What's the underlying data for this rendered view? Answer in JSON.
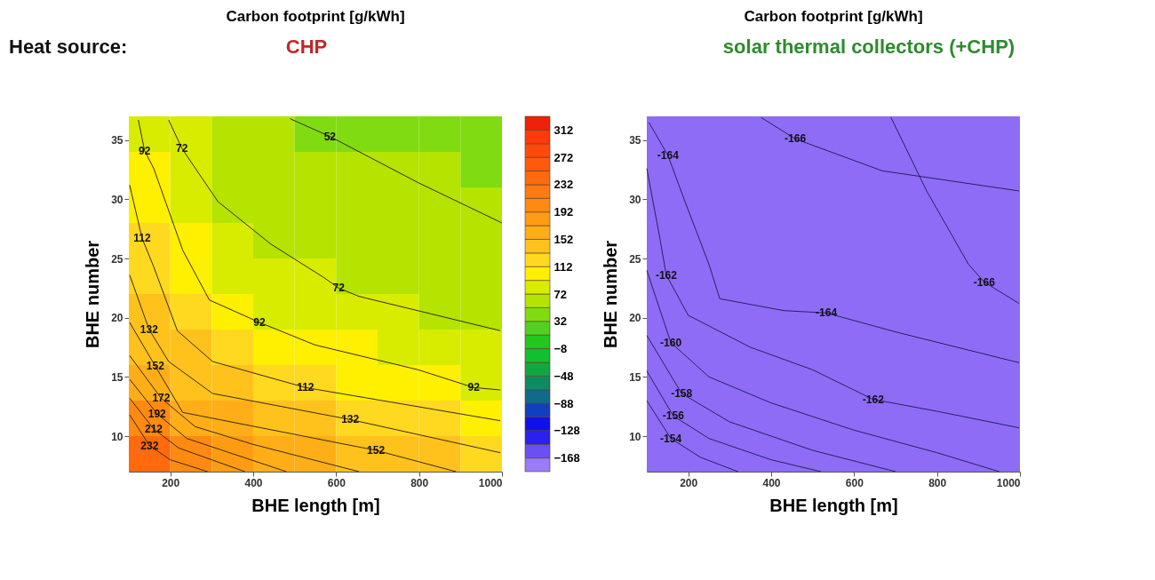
{
  "chart_data": [
    {
      "type": "heatmap",
      "title": "Carbon footprint [g/kWh]",
      "xlabel": "BHE length [m]",
      "ylabel": "BHE number",
      "x": [
        150,
        250,
        350,
        450,
        550,
        650,
        750,
        850,
        950
      ],
      "y": [
        35.5,
        32.5,
        29.5,
        26.5,
        23.5,
        20.5,
        17.5,
        14.5,
        11.5,
        8.5
      ],
      "cells": [
        [
          91,
          73,
          62,
          55,
          51,
          50,
          48,
          47,
          46
        ],
        [
          98,
          82,
          66,
          61,
          57,
          55,
          53,
          52,
          51
        ],
        [
          108,
          91,
          71,
          66,
          62,
          60,
          58,
          56,
          55
        ],
        [
          116,
          100,
          80,
          71,
          67,
          65,
          62,
          60,
          59
        ],
        [
          124,
          110,
          90,
          81,
          74,
          70,
          67,
          65,
          63
        ],
        [
          132,
          121,
          103,
          91,
          86,
          81,
          72,
          69,
          67
        ],
        [
          144,
          132,
          117,
          107,
          98,
          92,
          86,
          80,
          76
        ],
        [
          160,
          147,
          132,
          125,
          117,
          110,
          101,
          95,
          91
        ],
        [
          192,
          169,
          152,
          142,
          136,
          129,
          119,
          114,
          109
        ],
        [
          242,
          207,
          182,
          162,
          157,
          149,
          140,
          133,
          129
        ]
      ],
      "series": [
        {
          "type": "line",
          "color": "#3a2a10",
          "x": [
            489,
            585,
            798,
            1000
          ],
          "values": [
            36.8,
            35.3,
            31.4,
            28.0
          ]
        },
        {
          "type": "line",
          "color": "#3a2a10",
          "x": [
            196,
            228,
            251,
            315,
            443,
            570,
            606,
            655,
            996
          ],
          "values": [
            36.7,
            34.3,
            33.1,
            29.8,
            26.2,
            23.4,
            22.5,
            21.8,
            18.9
          ]
        },
        {
          "type": "line",
          "color": "#3a2a10",
          "x": [
            123,
            138,
            160,
            230,
            294,
            415,
            549,
            798,
            932,
            996
          ],
          "values": [
            36.7,
            34.1,
            32.6,
            25.7,
            21.5,
            19.6,
            17.7,
            15.6,
            14.1,
            13.9
          ]
        },
        {
          "type": "line",
          "color": "#3a2a10",
          "x": [
            102,
            132,
            160,
            217,
            302,
            526,
            728,
            996
          ],
          "values": [
            31.2,
            26.7,
            24.3,
            18.9,
            16.3,
            14.1,
            12.9,
            11.3
          ]
        },
        {
          "type": "line",
          "color": "#3a2a10",
          "x": [
            102,
            149,
            196,
            302,
            634,
            996
          ],
          "values": [
            23.6,
            19.0,
            16.3,
            13.6,
            11.4,
            8.6
          ]
        },
        {
          "type": "line",
          "color": "#3a2a10",
          "x": [
            102,
            164,
            230,
            696,
            889
          ],
          "values": [
            19.6,
            15.9,
            12.0,
            8.8,
            7.0
          ]
        },
        {
          "type": "line",
          "color": "#3a2a10",
          "x": [
            102,
            178,
            260,
            400,
            655
          ],
          "values": [
            16.8,
            13.2,
            10.8,
            9.3,
            7.0
          ]
        },
        {
          "type": "line",
          "color": "#3a2a10",
          "x": [
            102,
            168,
            240,
            480
          ],
          "values": [
            14.8,
            11.9,
            9.8,
            7.0
          ]
        },
        {
          "type": "line",
          "color": "#3a2a10",
          "x": [
            102,
            160,
            220,
            380
          ],
          "values": [
            13.2,
            10.6,
            9.0,
            7.0
          ]
        },
        {
          "type": "line",
          "color": "#3a2a10",
          "x": [
            102,
            150,
            200,
            290
          ],
          "values": [
            11.8,
            9.2,
            8.0,
            7.0
          ]
        }
      ],
      "xlim": [
        100,
        1000
      ],
      "xticks": [
        200,
        400,
        600,
        800,
        1000
      ],
      "ylim": [
        7,
        37
      ],
      "yticks": [
        10,
        15,
        20,
        25,
        30,
        35
      ],
      "clim": [
        -188,
        332
      ],
      "cticks": [
        -168,
        -128,
        -88,
        -48,
        -8,
        32,
        72,
        112,
        152,
        192,
        232,
        272,
        312
      ],
      "grid": false,
      "annotations": [
        "Heat source:",
        "CHP",
        {
          "text": "52",
          "x": 585,
          "y": 35.3
        },
        {
          "text": "72",
          "x": 228,
          "y": 34.3
        },
        {
          "text": "92",
          "x": 138,
          "y": 34.1
        },
        {
          "text": "112",
          "x": 132,
          "y": 26.7
        },
        {
          "text": "132",
          "x": 149,
          "y": 19.0
        },
        {
          "text": "152",
          "x": 164,
          "y": 15.9
        },
        {
          "text": "172",
          "x": 178,
          "y": 13.2
        },
        {
          "text": "192",
          "x": 168,
          "y": 11.9
        },
        {
          "text": "212",
          "x": 160,
          "y": 10.6
        },
        {
          "text": "232",
          "x": 150,
          "y": 9.2
        },
        {
          "text": "72",
          "x": 606,
          "y": 22.5
        },
        {
          "text": "92",
          "x": 415,
          "y": 19.6
        },
        {
          "text": "112",
          "x": 526,
          "y": 14.1
        },
        {
          "text": "132",
          "x": 634,
          "y": 11.4
        },
        {
          "text": "152",
          "x": 696,
          "y": 8.8
        },
        {
          "text": "92",
          "x": 932,
          "y": 14.1
        }
      ]
    },
    {
      "type": "line",
      "title": "Carbon footprint [g/kWh]",
      "xlabel": "BHE length [m]",
      "ylabel": "BHE number",
      "series": [
        {
          "color": "#2a2060",
          "x": [
            376,
            458,
            668,
            998
          ],
          "values": [
            36.9,
            35.1,
            32.4,
            30.7
          ]
        },
        {
          "color": "#2a2060",
          "x": [
            689,
            775,
            876,
            914,
            998
          ],
          "values": [
            36.9,
            30.7,
            24.5,
            23.0,
            21.2
          ]
        },
        {
          "color": "#2a2060",
          "x": [
            105,
            151,
            190,
            250,
            276,
            430,
            533,
            700,
            998
          ],
          "values": [
            36.5,
            33.7,
            30.0,
            24.5,
            21.6,
            20.6,
            20.4,
            18.8,
            16.2
          ]
        },
        {
          "color": "#2a2060",
          "x": [
            100,
            130,
            147,
            200,
            350,
            500,
            646,
            800,
            998
          ],
          "values": [
            32.6,
            27.0,
            23.6,
            20.2,
            17.5,
            15.6,
            13.1,
            12.1,
            10.7
          ]
        },
        {
          "color": "#2a2060",
          "x": [
            100,
            158,
            250,
            400,
            600,
            800,
            950
          ],
          "values": [
            24.0,
            17.9,
            15.0,
            12.8,
            10.5,
            8.6,
            7.0
          ]
        },
        {
          "color": "#2a2060",
          "x": [
            100,
            184,
            300,
            500,
            700
          ],
          "values": [
            18.5,
            13.6,
            11.2,
            8.8,
            7.0
          ]
        },
        {
          "color": "#2a2060",
          "x": [
            100,
            164,
            250,
            400,
            520
          ],
          "values": [
            15.5,
            11.7,
            9.8,
            8.0,
            7.0
          ]
        },
        {
          "color": "#2a2060",
          "x": [
            100,
            158,
            230,
            320
          ],
          "values": [
            13.0,
            9.8,
            8.2,
            7.0
          ]
        }
      ],
      "xlim": [
        100,
        1000
      ],
      "xticks": [
        200,
        400,
        600,
        800,
        1000
      ],
      "ylim": [
        7,
        37
      ],
      "yticks": [
        10,
        15,
        20,
        25,
        30,
        35
      ],
      "grid": false,
      "annotations": [
        "solar thermal collectors (+CHP)",
        {
          "text": "-166",
          "x": 458,
          "y": 35.1
        },
        {
          "text": "-164",
          "x": 151,
          "y": 33.7
        },
        {
          "text": "-166",
          "x": 914,
          "y": 23.0
        },
        {
          "text": "-164",
          "x": 533,
          "y": 20.4
        },
        {
          "text": "-162",
          "x": 147,
          "y": 23.6
        },
        {
          "text": "-162",
          "x": 646,
          "y": 13.1
        },
        {
          "text": "-160",
          "x": 158,
          "y": 17.9
        },
        {
          "text": "-158",
          "x": 184,
          "y": 13.6
        },
        {
          "text": "-156",
          "x": 164,
          "y": 11.7
        },
        {
          "text": "-154",
          "x": 158,
          "y": 9.8
        }
      ]
    }
  ]
}
